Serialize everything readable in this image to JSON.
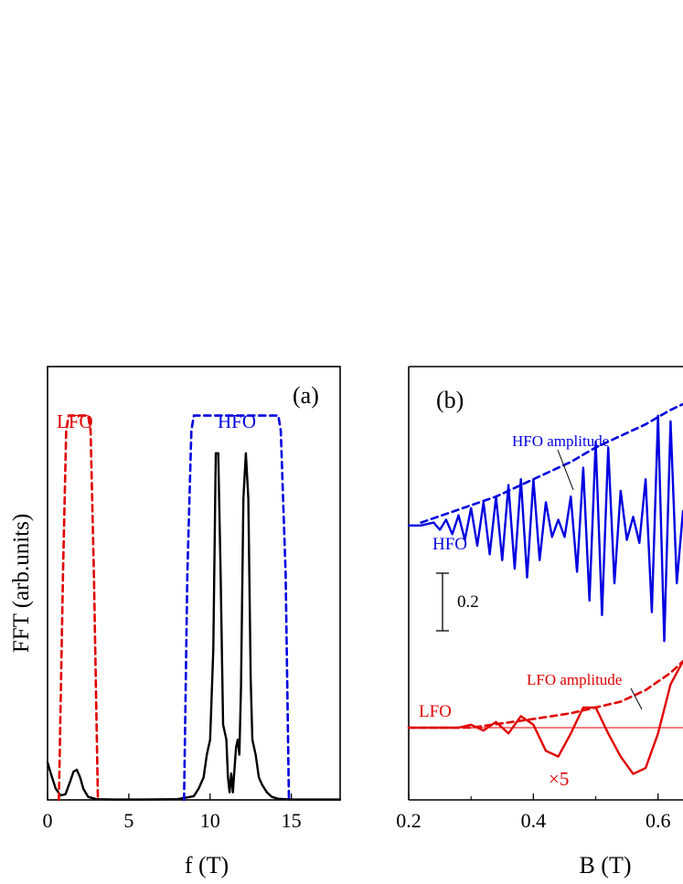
{
  "figure": {
    "panel_a": {
      "label": "(a)",
      "ylabel": "FFT (arb.units)",
      "xlabel": "f (T)",
      "xticks": [
        "0",
        "5",
        "10",
        "15"
      ],
      "annotations": {
        "lfo": "LFO",
        "hfo": "HFO"
      }
    },
    "panel_b": {
      "label": "(b)",
      "xlabel": "B (T)",
      "xticks": [
        "0.2",
        "0.4",
        "0.6"
      ],
      "annotations": {
        "hfo_amplitude": "HFO amplitude",
        "hfo": "HFO",
        "scale_bar": "0.2",
        "lfo_amplitude": "LFO amplitude",
        "lfo": "LFO",
        "multiplier": "×5"
      }
    }
  },
  "chart_data": [
    {
      "type": "line",
      "title": "(a)",
      "xlabel": "f (T)",
      "ylabel": "FFT (arb.units)",
      "xlim": [
        0,
        18
      ],
      "ylim": [
        0,
        1.15
      ],
      "ytick_labels": false,
      "series": [
        {
          "name": "FFT spectrum",
          "color": "#000000",
          "style": "solid",
          "x": [
            0,
            0.2,
            0.5,
            0.8,
            1.1,
            1.4,
            1.6,
            1.8,
            2.0,
            2.2,
            2.5,
            3.0,
            4,
            6,
            8,
            9.0,
            9.3,
            9.6,
            9.8,
            10.0,
            10.2,
            10.35,
            10.5,
            10.65,
            10.8,
            11.0,
            11.1,
            11.2,
            11.3,
            11.4,
            11.5,
            11.6,
            11.7,
            11.8,
            11.9,
            12.05,
            12.2,
            12.35,
            12.5,
            12.6,
            12.8,
            13.0,
            13.2,
            13.5,
            13.8,
            14.2,
            15,
            16,
            18
          ],
          "y": [
            0.1,
            0.07,
            0.03,
            0.012,
            0.015,
            0.05,
            0.075,
            0.08,
            0.06,
            0.03,
            0.008,
            0.002,
            0.001,
            0.001,
            0.002,
            0.01,
            0.03,
            0.06,
            0.12,
            0.16,
            0.4,
            0.92,
            0.92,
            0.6,
            0.2,
            0.16,
            0.06,
            0.02,
            0.07,
            0.02,
            0.08,
            0.14,
            0.16,
            0.12,
            0.3,
            0.8,
            0.92,
            0.8,
            0.32,
            0.16,
            0.12,
            0.06,
            0.04,
            0.02,
            0.008,
            0.003,
            0.001,
            0.001,
            0.001
          ]
        },
        {
          "name": "LFO",
          "color": "#e00000",
          "style": "dashed",
          "x": [
            0.7,
            0.95,
            1.15,
            1.3,
            2.5,
            2.65,
            2.85,
            3.1
          ],
          "y": [
            0,
            0.6,
            0.98,
            1.02,
            1.02,
            0.98,
            0.6,
            0
          ]
        },
        {
          "name": "HFO",
          "color": "#0000e0",
          "style": "dashed",
          "x": [
            8.4,
            8.6,
            8.85,
            9.0,
            14.2,
            14.35,
            14.65,
            14.85
          ],
          "y": [
            0,
            0.6,
            0.98,
            1.02,
            1.02,
            0.98,
            0.6,
            0
          ]
        }
      ]
    },
    {
      "type": "line",
      "title": "(b)",
      "xlabel": "B (T)",
      "ylabel": "",
      "xlim": [
        0.2,
        0.64
      ],
      "ylim": [
        -0.95,
        0.55
      ],
      "ytick_labels": false,
      "x_minor_ticks": [
        0.3,
        0.5
      ],
      "series": [
        {
          "name": "HFO",
          "color": "#0000e0",
          "style": "solid",
          "x": [
            0.2,
            0.22,
            0.24,
            0.25,
            0.26,
            0.27,
            0.28,
            0.29,
            0.3,
            0.31,
            0.32,
            0.33,
            0.34,
            0.35,
            0.36,
            0.37,
            0.38,
            0.39,
            0.4,
            0.41,
            0.42,
            0.43,
            0.44,
            0.45,
            0.46,
            0.47,
            0.48,
            0.49,
            0.5,
            0.51,
            0.52,
            0.53,
            0.54,
            0.55,
            0.56,
            0.57,
            0.58,
            0.59,
            0.6,
            0.61,
            0.62,
            0.63,
            0.64
          ],
          "y": [
            0,
            0,
            0.01,
            -0.015,
            0.02,
            -0.03,
            0.035,
            -0.05,
            0.06,
            -0.07,
            0.08,
            -0.1,
            0.1,
            -0.12,
            0.14,
            -0.15,
            0.16,
            -0.18,
            0.16,
            -0.12,
            0.08,
            -0.04,
            0.02,
            -0.04,
            0.1,
            -0.16,
            0.2,
            -0.26,
            0.29,
            -0.31,
            0.27,
            -0.2,
            0.12,
            -0.05,
            0.03,
            -0.06,
            0.16,
            -0.3,
            0.38,
            -0.4,
            0.36,
            -0.2,
            0.05
          ]
        },
        {
          "name": "HFO amplitude",
          "color": "#0000e0",
          "style": "dashed",
          "x": [
            0.22,
            0.26,
            0.3,
            0.34,
            0.38,
            0.42,
            0.46,
            0.5,
            0.54,
            0.58,
            0.62,
            0.64
          ],
          "y": [
            0.01,
            0.04,
            0.07,
            0.1,
            0.14,
            0.18,
            0.22,
            0.27,
            0.31,
            0.35,
            0.4,
            0.42
          ]
        },
        {
          "name": "LFO",
          "color": "#e00000",
          "style": "solid",
          "x": [
            0.2,
            0.24,
            0.28,
            0.3,
            0.32,
            0.34,
            0.36,
            0.38,
            0.4,
            0.42,
            0.44,
            0.46,
            0.48,
            0.5,
            0.52,
            0.54,
            0.56,
            0.58,
            0.6,
            0.62,
            0.64
          ],
          "y": [
            -0.7,
            -0.7,
            -0.7,
            -0.69,
            -0.71,
            -0.68,
            -0.72,
            -0.66,
            -0.69,
            -0.78,
            -0.8,
            -0.72,
            -0.63,
            -0.63,
            -0.72,
            -0.8,
            -0.86,
            -0.84,
            -0.72,
            -0.55,
            -0.47
          ]
        },
        {
          "name": "LFO amplitude",
          "color": "#e00000",
          "style": "dashed",
          "x": [
            0.2,
            0.3,
            0.4,
            0.46,
            0.5,
            0.54,
            0.58,
            0.62,
            0.64
          ],
          "y": [
            -0.7,
            -0.7,
            -0.67,
            -0.65,
            -0.63,
            -0.61,
            -0.57,
            -0.51,
            -0.47
          ]
        },
        {
          "name": "LFO baseline",
          "color": "#e00000",
          "style": "thin",
          "x": [
            0.2,
            0.64
          ],
          "y": [
            -0.7,
            -0.7
          ]
        }
      ],
      "scale_bar": {
        "value": 0.2
      }
    }
  ]
}
